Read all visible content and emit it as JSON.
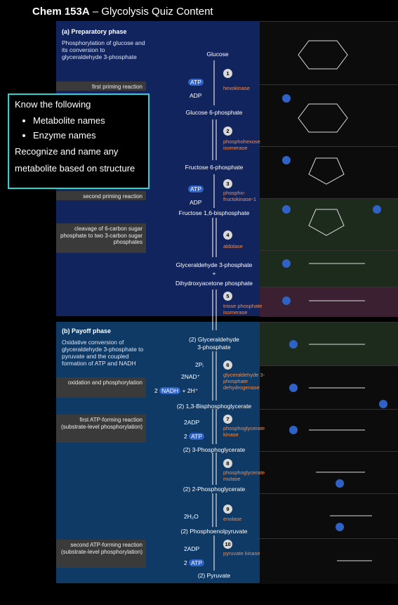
{
  "title": {
    "bold": "Chem 153A",
    "rest": " – Glycolysis Quiz Content"
  },
  "callout": {
    "heading": "Know the following",
    "items": [
      "Metabolite names",
      "Enzyme names"
    ],
    "line1": "Recognize and name any",
    "line2": "metabolite based on structure"
  },
  "phase_a": {
    "title": "(a) Preparatory phase",
    "desc": "Phosphorylation of glucose and its conversion to glyceraldehyde 3-phosphate"
  },
  "phase_b": {
    "title": "(b) Payoff phase",
    "desc": "Oxidative conversion of glyceraldehyde 3-phosphate to pyruvate and the coupled formation of ATP and NADH"
  },
  "notes": {
    "n1": "first priming reaction",
    "n2": "second priming reaction",
    "n3": "cleavage of 6-carbon sugar phosphate to two 3-carbon sugar phosphates",
    "n4": "oxidation and phosphorylation",
    "n5": "first ATP-forming reaction (substrate-level phosphorylation)",
    "n6": "second ATP-forming reaction (substrate-level phosphorylation)"
  },
  "metabolites": {
    "m0": "Glucose",
    "m1": "Glucose 6-phosphate",
    "m2": "Fructose 6-phosphate",
    "m3": "Fructose 1,6-bisphosphate",
    "m4a": "Glyceraldehyde 3-phosphate",
    "m4plus": "+",
    "m4b": "Dihydroxyacetone phosphate",
    "m5a": "(2) Glyceraldehyde",
    "m5b": "3-phosphate",
    "m6": "(2) 1,3-Bisphosphoglycerate",
    "m7": "(2) 3-Phosphoglycerate",
    "m8": "(2) 2-Phosphoglycerate",
    "m9": "(2) Phosphoenolpyruvate",
    "m10": "(2) Pyruvate"
  },
  "steps": [
    "1",
    "2",
    "3",
    "4",
    "5",
    "6",
    "7",
    "8",
    "9",
    "10"
  ],
  "enzymes": {
    "e1": "hexokinase",
    "e2": "phosphohexose isomerase",
    "e3": "phospho- fructokinase-1",
    "e4": "aldolase",
    "e5": "triose phosphate isomerase",
    "e6": "glyceraldehyde 3-phosphate dehydrogenase",
    "e7": "phosphoglycerate kinase",
    "e8": "phosphoglycerate mutase",
    "e9": "enolase",
    "e10": "pyruvate kinase"
  },
  "cofactors": {
    "atp": "ATP",
    "adp": "ADP",
    "pi": "2Pᵢ",
    "nad": "2NAD⁺",
    "nadh_pre": "2 ",
    "nadh": "NADH",
    "nadh_post": " + 2H⁺",
    "adp2": "2ADP",
    "atp2_pre": "2 ",
    "atp2": "ATP",
    "h2o": "2H₂O"
  },
  "colors": {
    "phase_a": "#12245e",
    "phase_b": "#0f3a66",
    "enzyme": "#ff8a3d",
    "callout_border": "#2bd4d4",
    "phosphate": "#2f62c7"
  }
}
